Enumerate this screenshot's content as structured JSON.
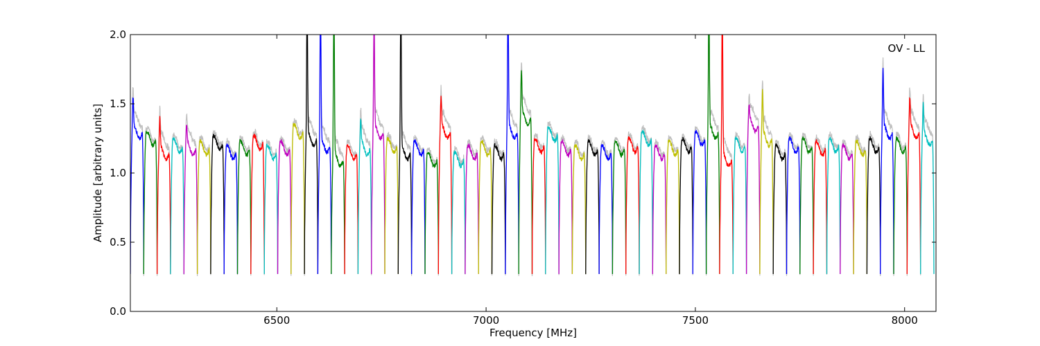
{
  "chart_data": {
    "type": "line",
    "annotation": "OV - LL",
    "xlabel": "Frequency [MHz]",
    "ylabel": "Amplitude [arbitrary units]",
    "xlim": [
      6150,
      8075
    ],
    "ylim": [
      0.0,
      2.0
    ],
    "x_ticks": [
      6500,
      7000,
      7500,
      8000
    ],
    "x_tick_labels": [
      "6500",
      "7000",
      "7500",
      "8000"
    ],
    "y_ticks": [
      0.0,
      0.5,
      1.0,
      1.5,
      2.0
    ],
    "y_tick_labels": [
      "0.0",
      "0.5",
      "1.0",
      "1.5",
      "2.0"
    ],
    "grid": false,
    "raw_color": "#bfbfbf",
    "channel_colors": [
      "#0000ff",
      "#008000",
      "#ff0000",
      "#00bfbf",
      "#bf00bf",
      "#bfbf00",
      "#000000"
    ],
    "channel_width_mhz": 32,
    "channels": [
      {
        "start": 6150,
        "level": 1.3,
        "peak": 1.5
      },
      {
        "start": 6182,
        "level": 1.25
      },
      {
        "start": 6214,
        "level": 1.15,
        "peak": 1.35
      },
      {
        "start": 6246,
        "level": 1.2
      },
      {
        "start": 6278,
        "level": 1.18,
        "peak": 1.3
      },
      {
        "start": 6310,
        "level": 1.18
      },
      {
        "start": 6342,
        "level": 1.22
      },
      {
        "start": 6374,
        "level": 1.15
      },
      {
        "start": 6406,
        "level": 1.18
      },
      {
        "start": 6438,
        "level": 1.22
      },
      {
        "start": 6470,
        "level": 1.15
      },
      {
        "start": 6502,
        "level": 1.18
      },
      {
        "start": 6534,
        "level": 1.3
      },
      {
        "start": 6566,
        "level": 1.25,
        "peak": 2.2
      },
      {
        "start": 6598,
        "level": 1.2,
        "peak": 2.2
      },
      {
        "start": 6630,
        "level": 1.1,
        "peak": 2.2
      },
      {
        "start": 6662,
        "level": 1.15
      },
      {
        "start": 6694,
        "level": 1.18,
        "peak": 1.35
      },
      {
        "start": 6726,
        "level": 1.3,
        "peak": 2.05
      },
      {
        "start": 6758,
        "level": 1.2
      },
      {
        "start": 6790,
        "level": 1.15,
        "peak": 2.2
      },
      {
        "start": 6822,
        "level": 1.18
      },
      {
        "start": 6854,
        "level": 1.1
      },
      {
        "start": 6886,
        "level": 1.3,
        "peak": 1.5
      },
      {
        "start": 6918,
        "level": 1.1
      },
      {
        "start": 6950,
        "level": 1.15
      },
      {
        "start": 6982,
        "level": 1.18
      },
      {
        "start": 7014,
        "level": 1.15
      },
      {
        "start": 7046,
        "level": 1.3,
        "peak": 2.2
      },
      {
        "start": 7078,
        "level": 1.4,
        "peak": 1.7
      },
      {
        "start": 7110,
        "level": 1.2
      },
      {
        "start": 7142,
        "level": 1.28
      },
      {
        "start": 7174,
        "level": 1.18
      },
      {
        "start": 7206,
        "level": 1.15
      },
      {
        "start": 7238,
        "level": 1.18
      },
      {
        "start": 7270,
        "level": 1.15
      },
      {
        "start": 7302,
        "level": 1.18
      },
      {
        "start": 7334,
        "level": 1.2
      },
      {
        "start": 7366,
        "level": 1.25
      },
      {
        "start": 7398,
        "level": 1.15
      },
      {
        "start": 7430,
        "level": 1.18
      },
      {
        "start": 7462,
        "level": 1.2
      },
      {
        "start": 7494,
        "level": 1.25
      },
      {
        "start": 7526,
        "level": 1.3,
        "peak": 2.2
      },
      {
        "start": 7558,
        "level": 1.1,
        "peak": 2.2
      },
      {
        "start": 7590,
        "level": 1.2
      },
      {
        "start": 7622,
        "level": 1.35,
        "peak": 1.45
      },
      {
        "start": 7654,
        "level": 1.25,
        "peak": 1.55
      },
      {
        "start": 7686,
        "level": 1.15
      },
      {
        "start": 7718,
        "level": 1.2
      },
      {
        "start": 7750,
        "level": 1.2
      },
      {
        "start": 7782,
        "level": 1.18
      },
      {
        "start": 7814,
        "level": 1.2
      },
      {
        "start": 7846,
        "level": 1.15
      },
      {
        "start": 7878,
        "level": 1.18
      },
      {
        "start": 7910,
        "level": 1.2
      },
      {
        "start": 7942,
        "level": 1.3,
        "peak": 1.7
      },
      {
        "start": 7974,
        "level": 1.2
      },
      {
        "start": 8006,
        "level": 1.3,
        "peak": 1.5
      },
      {
        "start": 8038,
        "level": 1.25,
        "peak": 1.45
      }
    ]
  }
}
